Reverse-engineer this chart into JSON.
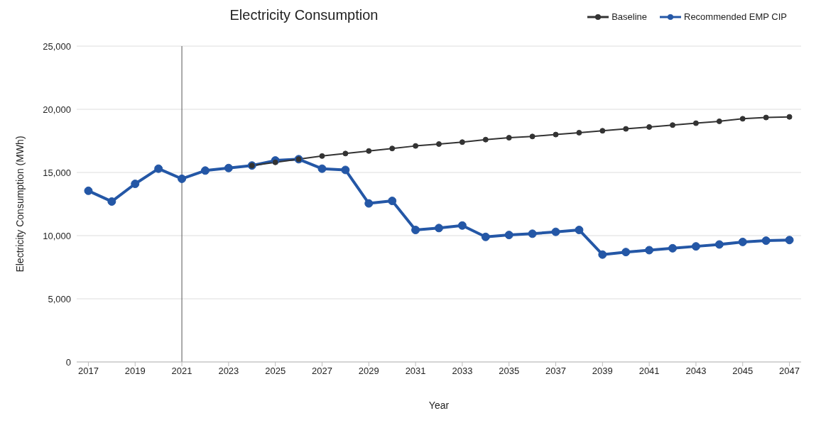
{
  "chart_data": {
    "type": "line",
    "title": "Electricity Consumption",
    "xlabel": "Year",
    "ylabel": "Electricity Consumption (MWh)",
    "x": [
      2017,
      2018,
      2019,
      2020,
      2021,
      2022,
      2023,
      2024,
      2025,
      2026,
      2027,
      2028,
      2029,
      2030,
      2031,
      2032,
      2033,
      2034,
      2035,
      2036,
      2037,
      2038,
      2039,
      2040,
      2041,
      2042,
      2043,
      2044,
      2045,
      2046,
      2047
    ],
    "series": [
      {
        "name": "Baseline",
        "color": "#333333",
        "values": [
          null,
          null,
          null,
          null,
          null,
          null,
          null,
          15550,
          15800,
          16050,
          16300,
          16500,
          16700,
          16900,
          17100,
          17250,
          17400,
          17600,
          17750,
          17850,
          18000,
          18150,
          18300,
          18450,
          18600,
          18750,
          18900,
          19050,
          19250,
          19350,
          19400
        ]
      },
      {
        "name": "Recommended EMP CIP",
        "color": "#2457a6",
        "values": [
          13550,
          12700,
          14100,
          15300,
          14500,
          15150,
          15350,
          15550,
          15950,
          16050,
          15300,
          15200,
          12550,
          12750,
          10450,
          10600,
          10800,
          9900,
          10050,
          10150,
          10300,
          10450,
          8500,
          8700,
          8850,
          9000,
          9150,
          9300,
          9500,
          9600,
          9650
        ]
      }
    ],
    "xlim": [
      2016.5,
      2047.5
    ],
    "xticks": [
      2017,
      2019,
      2021,
      2023,
      2025,
      2027,
      2029,
      2031,
      2033,
      2035,
      2037,
      2039,
      2041,
      2043,
      2045,
      2047
    ],
    "ylim": [
      0,
      25000
    ],
    "yticks": [
      0,
      {
        "value": 5000,
        "label": "5,000"
      },
      {
        "value": 10000,
        "label": "10,000"
      },
      {
        "value": 15000,
        "label": "15,000"
      },
      {
        "value": 20000,
        "label": "20,000"
      },
      {
        "value": 25000,
        "label": "25,000"
      }
    ],
    "ref_lines": [
      {
        "axis": "x",
        "value": 2021,
        "color": "#555555"
      }
    ],
    "grid": "y",
    "legend": "top right",
    "marker": "circle",
    "line_style": "solid"
  }
}
